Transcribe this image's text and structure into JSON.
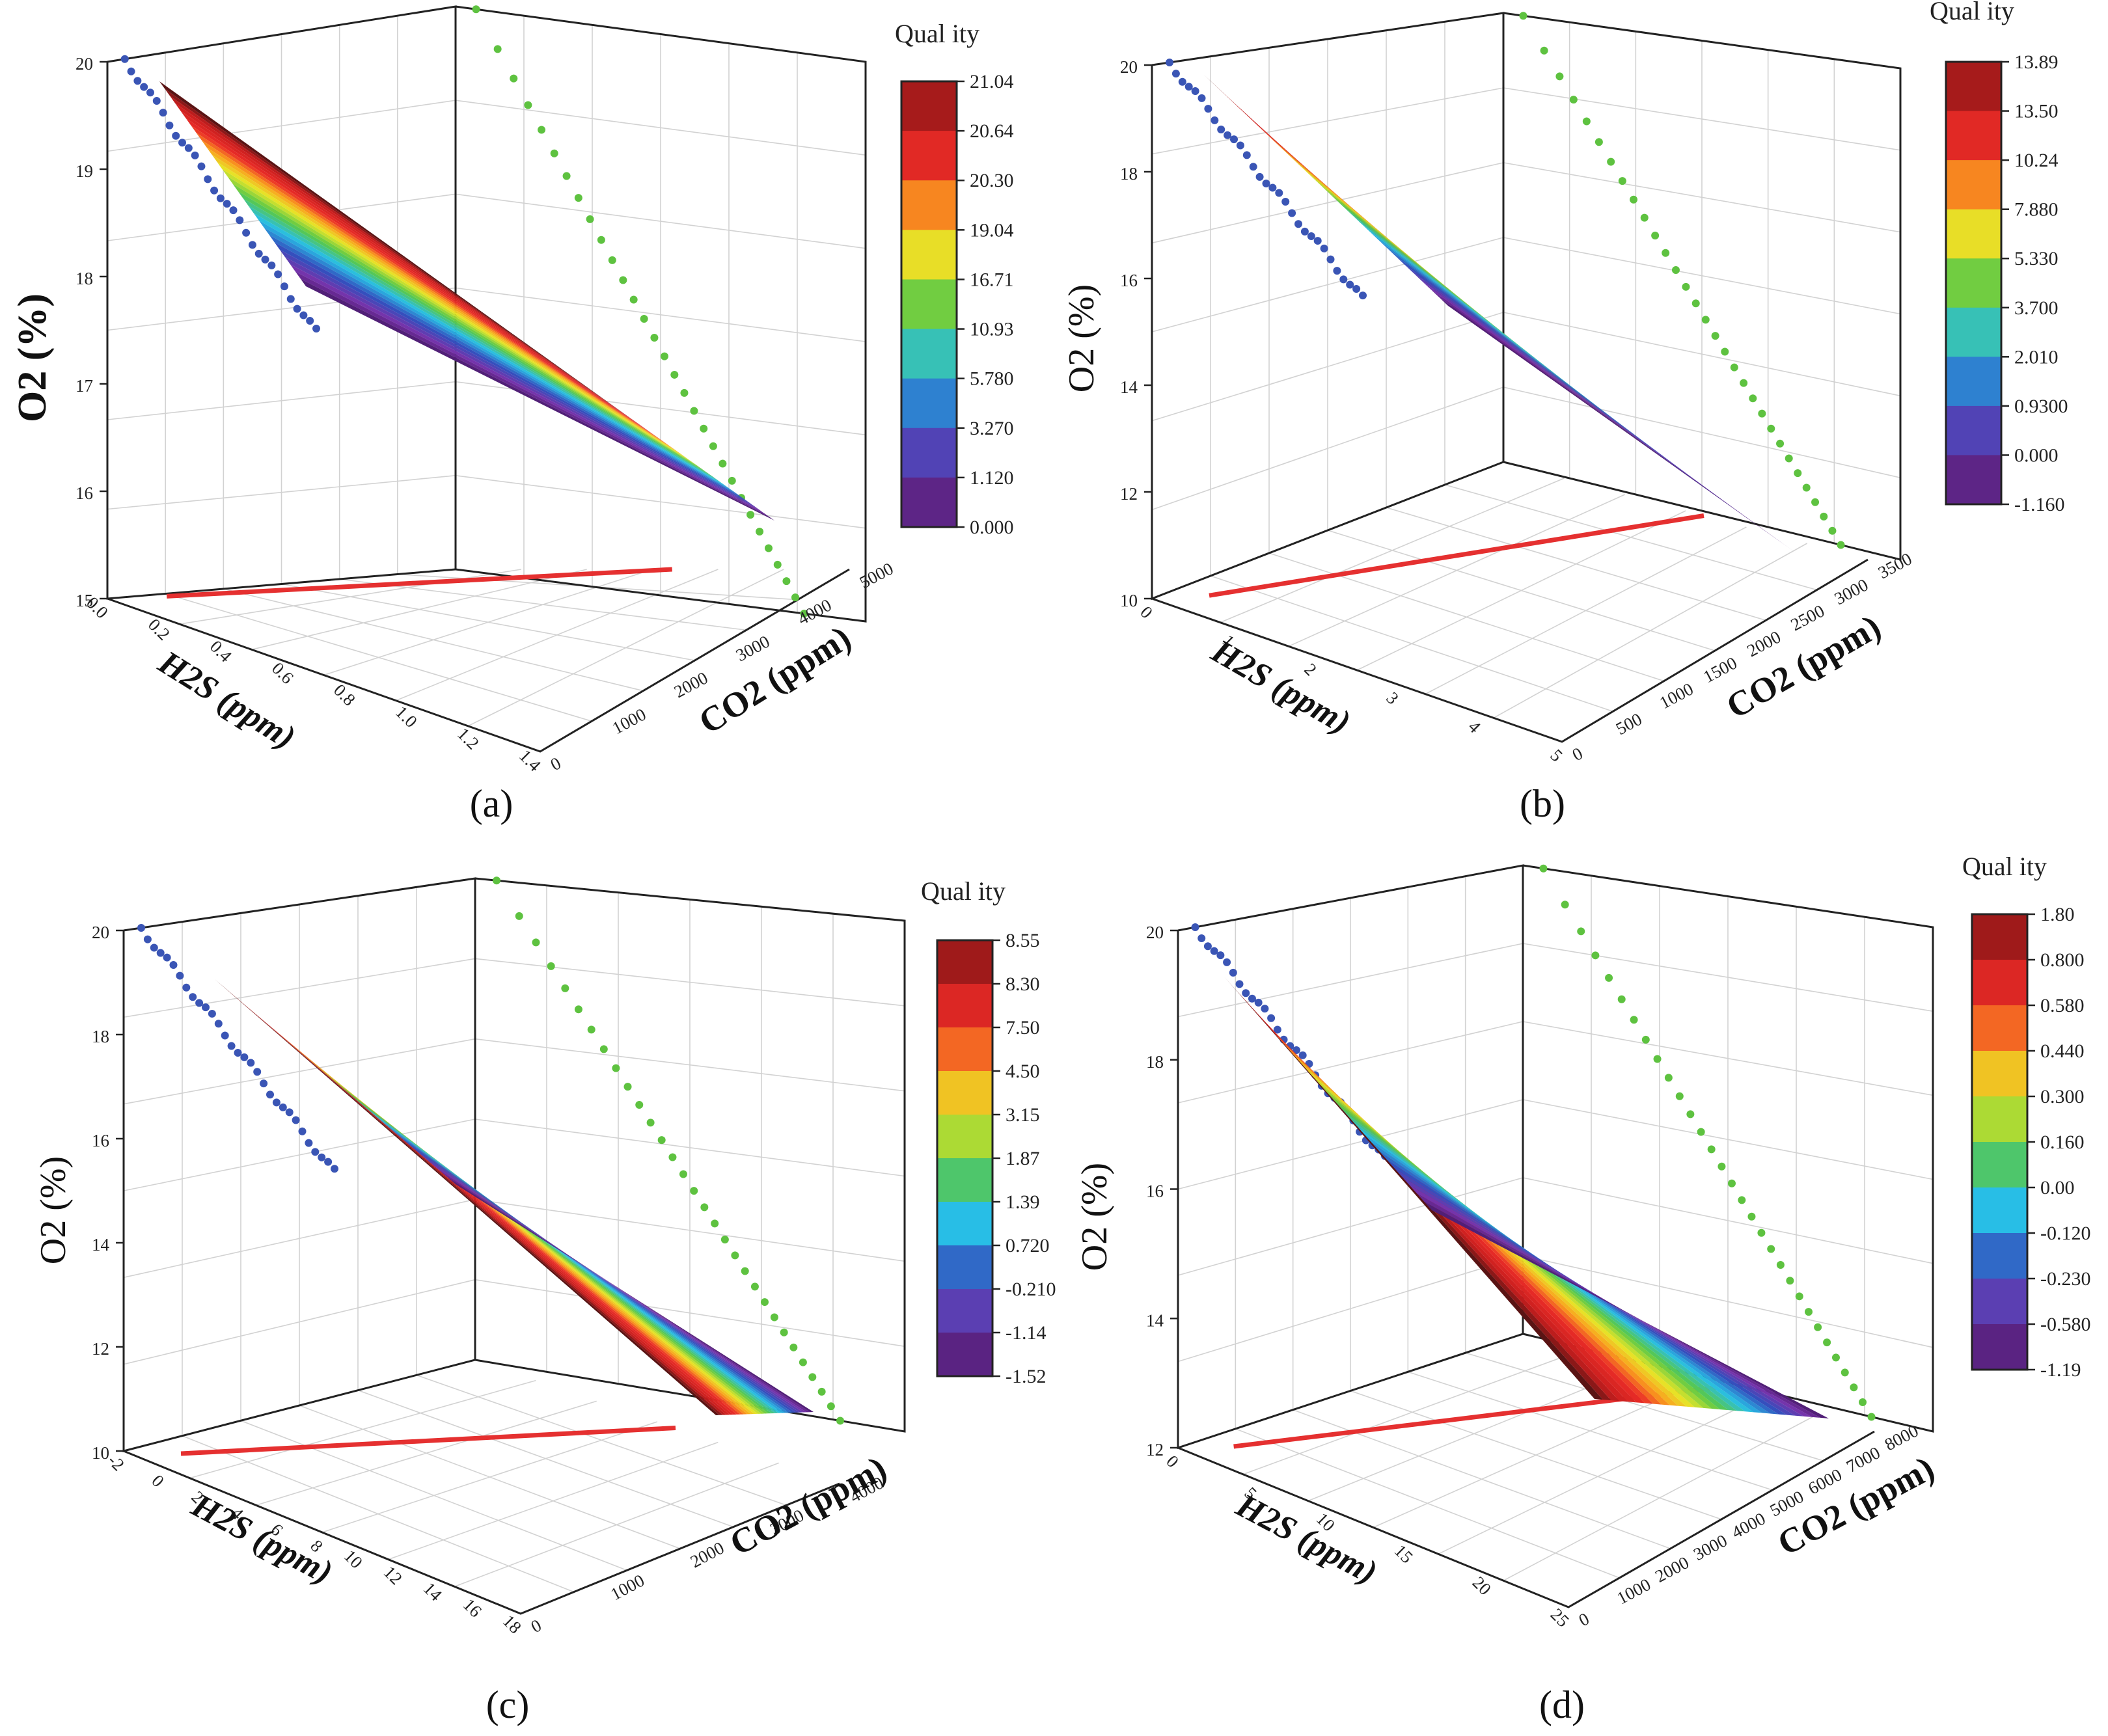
{
  "figure": {
    "panels": [
      {
        "id": "a",
        "letter": "(a)",
        "colorbar": {
          "title": "Qual ity",
          "levels": [
            "21.04",
            "20.64",
            "20.30",
            "19.04",
            "16.71",
            "10.93",
            "5.780",
            "3.270",
            "1.120",
            "0.000"
          ]
        },
        "axes": {
          "z_title": "O2 (%)",
          "x_title": "H2S (ppm)",
          "y_title": "CO2 (ppm)",
          "z_ticks": [
            "15",
            "16",
            "17",
            "18",
            "19",
            "20"
          ],
          "x_ticks": [
            "0.0",
            "0.2",
            "0.4",
            "0.6",
            "0.8",
            "1.0",
            "1.2",
            "1.4"
          ],
          "y_ticks": [
            "0",
            "1000",
            "2000",
            "3000",
            "4000",
            "5000"
          ]
        }
      },
      {
        "id": "b",
        "letter": "(b)",
        "colorbar": {
          "title": "Qual ity",
          "levels": [
            "13.89",
            "13.50",
            "10.24",
            "7.880",
            "5.330",
            "3.700",
            "2.010",
            "0.9300",
            "0.000",
            "-1.160"
          ]
        },
        "axes": {
          "z_title": "O2 (%)",
          "x_title": "H2S (ppm)",
          "y_title": "CO2 (ppm)",
          "z_ticks": [
            "10",
            "12",
            "14",
            "16",
            "18",
            "20"
          ],
          "x_ticks": [
            "0",
            "1",
            "2",
            "3",
            "4",
            "5"
          ],
          "y_ticks": [
            "0",
            "500",
            "1000",
            "1500",
            "2000",
            "2500",
            "3000",
            "3500"
          ]
        }
      },
      {
        "id": "c",
        "letter": "(c)",
        "colorbar": {
          "title": "Qual ity",
          "levels": [
            "8.55",
            "8.30",
            "7.50",
            "4.50",
            "3.15",
            "1.87",
            "1.39",
            "0.720",
            "-0.210",
            "-1.14",
            "-1.52"
          ]
        },
        "axes": {
          "z_title": "O2 (%)",
          "x_title": "H2S (ppm)",
          "y_title": "CO2 (ppm)",
          "z_ticks": [
            "10",
            "12",
            "14",
            "16",
            "18",
            "20"
          ],
          "x_ticks": [
            "-2",
            "0",
            "2",
            "4",
            "6",
            "8",
            "10",
            "12",
            "14",
            "16",
            "18"
          ],
          "y_ticks": [
            "0",
            "1000",
            "2000",
            "3000",
            "4000"
          ]
        }
      },
      {
        "id": "d",
        "letter": "(d)",
        "colorbar": {
          "title": "Qual ity",
          "levels": [
            "1.80",
            "0.800",
            "0.580",
            "0.440",
            "0.300",
            "0.160",
            "0.00",
            "-0.120",
            "-0.230",
            "-0.580",
            "-1.19"
          ]
        },
        "axes": {
          "z_title": "O2 (%)",
          "x_title": "H2S (ppm)",
          "y_title": "CO2 (ppm)",
          "z_ticks": [
            "12",
            "14",
            "16",
            "18",
            "20"
          ],
          "x_ticks": [
            "0",
            "5",
            "10",
            "15",
            "20",
            "25"
          ],
          "y_ticks": [
            "0",
            "1000",
            "2000",
            "3000",
            "4000",
            "5000",
            "6000",
            "7000",
            "8000"
          ]
        }
      }
    ]
  },
  "chart_data": [
    {
      "type": "surface3d",
      "title": "(a)",
      "xlabel": "H2S (ppm)",
      "ylabel": "CO2 (ppm)",
      "zlabel": "O2 (%)",
      "xlim": [
        0.0,
        1.4
      ],
      "ylim": [
        0,
        5000
      ],
      "zlim": [
        15,
        20
      ],
      "colorbar_label": "Quality",
      "colorbar_levels": [
        21.04,
        20.64,
        20.3,
        19.04,
        16.71,
        10.93,
        5.78,
        3.27,
        1.12,
        0.0
      ],
      "surface_corners": [
        {
          "x": 0.0,
          "y": 0,
          "z": 19.9
        },
        {
          "x": 0.75,
          "y": 4500,
          "z": 16.0
        }
      ],
      "projections": [
        "H2S-O2 wall (blue)",
        "CO2-O2 wall (green)",
        "H2S-CO2 floor (red)"
      ]
    },
    {
      "type": "surface3d",
      "title": "(b)",
      "xlabel": "H2S (ppm)",
      "ylabel": "CO2 (ppm)",
      "zlabel": "O2 (%)",
      "xlim": [
        0,
        5
      ],
      "ylim": [
        0,
        3500
      ],
      "zlim": [
        10,
        20
      ],
      "colorbar_label": "Quality",
      "colorbar_levels": [
        13.89,
        13.5,
        10.24,
        7.88,
        5.33,
        3.7,
        2.01,
        0.93,
        0.0,
        -1.16
      ],
      "surface_corners": [
        {
          "x": 0,
          "y": 0,
          "z": 19.8
        },
        {
          "x": 5,
          "y": 3500,
          "z": 11.0
        }
      ],
      "projections": [
        "H2S-O2 wall (blue)",
        "CO2-O2 wall (green)",
        "H2S-CO2 floor (red)"
      ]
    },
    {
      "type": "surface3d",
      "title": "(c)",
      "xlabel": "H2S (ppm)",
      "ylabel": "CO2 (ppm)",
      "zlabel": "O2 (%)",
      "xlim": [
        -2,
        18
      ],
      "ylim": [
        0,
        4000
      ],
      "zlim": [
        10,
        20
      ],
      "colorbar_label": "Quality",
      "colorbar_levels": [
        8.55,
        8.3,
        7.5,
        4.5,
        3.15,
        1.87,
        1.39,
        0.72,
        -0.21,
        -1.14,
        -1.52
      ],
      "surface_corners": [
        {
          "x": 0,
          "y": 0,
          "z": 19.5
        },
        {
          "x": 16,
          "y": 4000,
          "z": 10.2
        }
      ],
      "projections": [
        "H2S-O2 wall (blue)",
        "CO2-O2 wall (green)",
        "H2S-CO2 floor (red)"
      ]
    },
    {
      "type": "surface3d",
      "title": "(d)",
      "xlabel": "H2S (ppm)",
      "ylabel": "CO2 (ppm)",
      "zlabel": "O2 (%)",
      "xlim": [
        0,
        25
      ],
      "ylim": [
        0,
        8000
      ],
      "zlim": [
        12,
        20
      ],
      "colorbar_label": "Quality",
      "colorbar_levels": [
        1.8,
        0.8,
        0.58,
        0.44,
        0.3,
        0.16,
        0.0,
        -0.12,
        -0.23,
        -0.58,
        -1.19
      ],
      "surface_corners": [
        {
          "x": 0,
          "y": 0,
          "z": 19.7
        },
        {
          "x": 22,
          "y": 8000,
          "z": 12.0
        }
      ],
      "projections": [
        "H2S-O2 wall (blue)",
        "CO2-O2 wall (green)",
        "H2S-CO2 floor (red)"
      ]
    }
  ]
}
